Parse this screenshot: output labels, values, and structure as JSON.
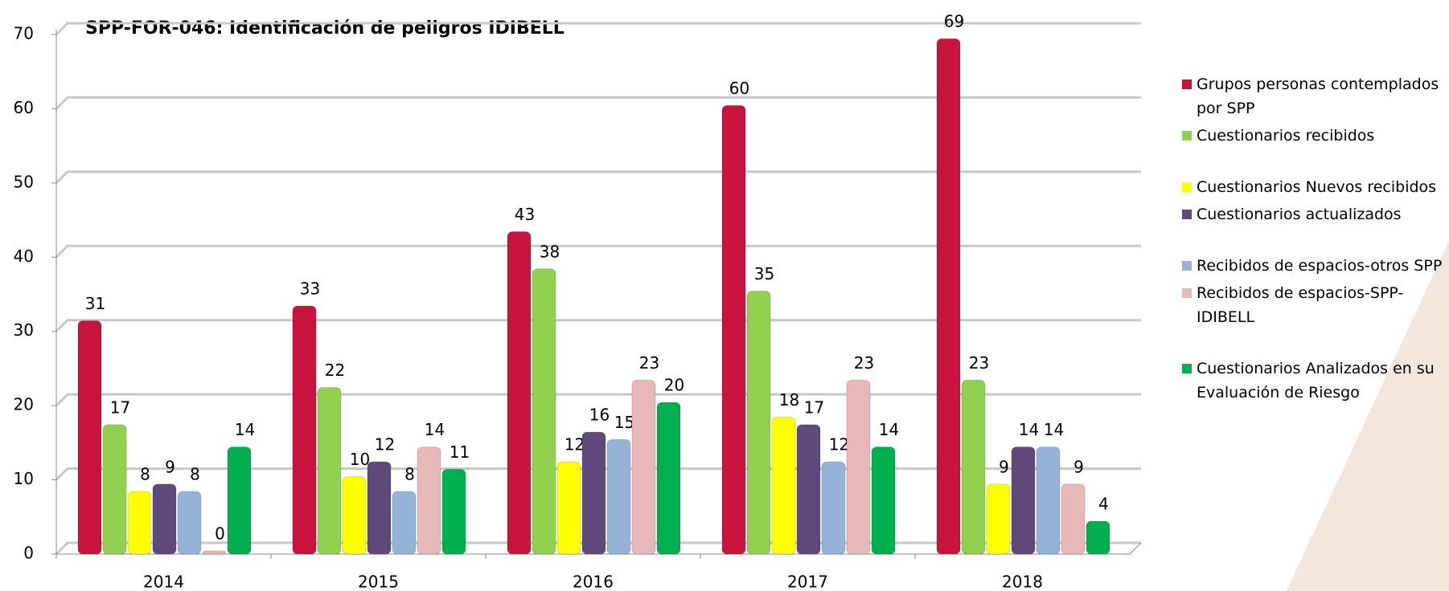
{
  "chart_data": {
    "type": "bar",
    "title": "SPP-FOR-046: Identificación de peligros IDIBELL",
    "categories": [
      "2014",
      "2015",
      "2016",
      "2017",
      "2018"
    ],
    "series": [
      {
        "name": "Grupos personas contemplados por SPP",
        "color": "#c8143c",
        "values": [
          31,
          33,
          43,
          60,
          69
        ]
      },
      {
        "name": "Cuestionarios recibidos",
        "color": "#92d050",
        "values": [
          17,
          22,
          38,
          35,
          23
        ]
      },
      {
        "name": "Cuestionarios Nuevos recibidos",
        "color": "#ffff00",
        "values": [
          8,
          10,
          12,
          18,
          9
        ]
      },
      {
        "name": "Cuestionarios actualizados",
        "color": "#5f497a",
        "values": [
          9,
          12,
          16,
          17,
          14
        ]
      },
      {
        "name": "Recibidos de espacios-otros SPP",
        "color": "#95b3d7",
        "values": [
          8,
          8,
          15,
          12,
          14
        ]
      },
      {
        "name": "Recibidos de espacios-SPP-IDIBELL",
        "color": "#e6b9b8",
        "values": [
          0,
          14,
          23,
          23,
          9
        ]
      },
      {
        "name": "Cuestionarios Analizados en su Evaluación de Riesgo",
        "color": "#00b050",
        "values": [
          14,
          11,
          20,
          14,
          4
        ]
      }
    ],
    "ylim": [
      0,
      70
    ],
    "yticks": [
      0,
      10,
      20,
      30,
      40,
      50,
      60,
      70
    ],
    "grid": true,
    "legend": "right"
  }
}
